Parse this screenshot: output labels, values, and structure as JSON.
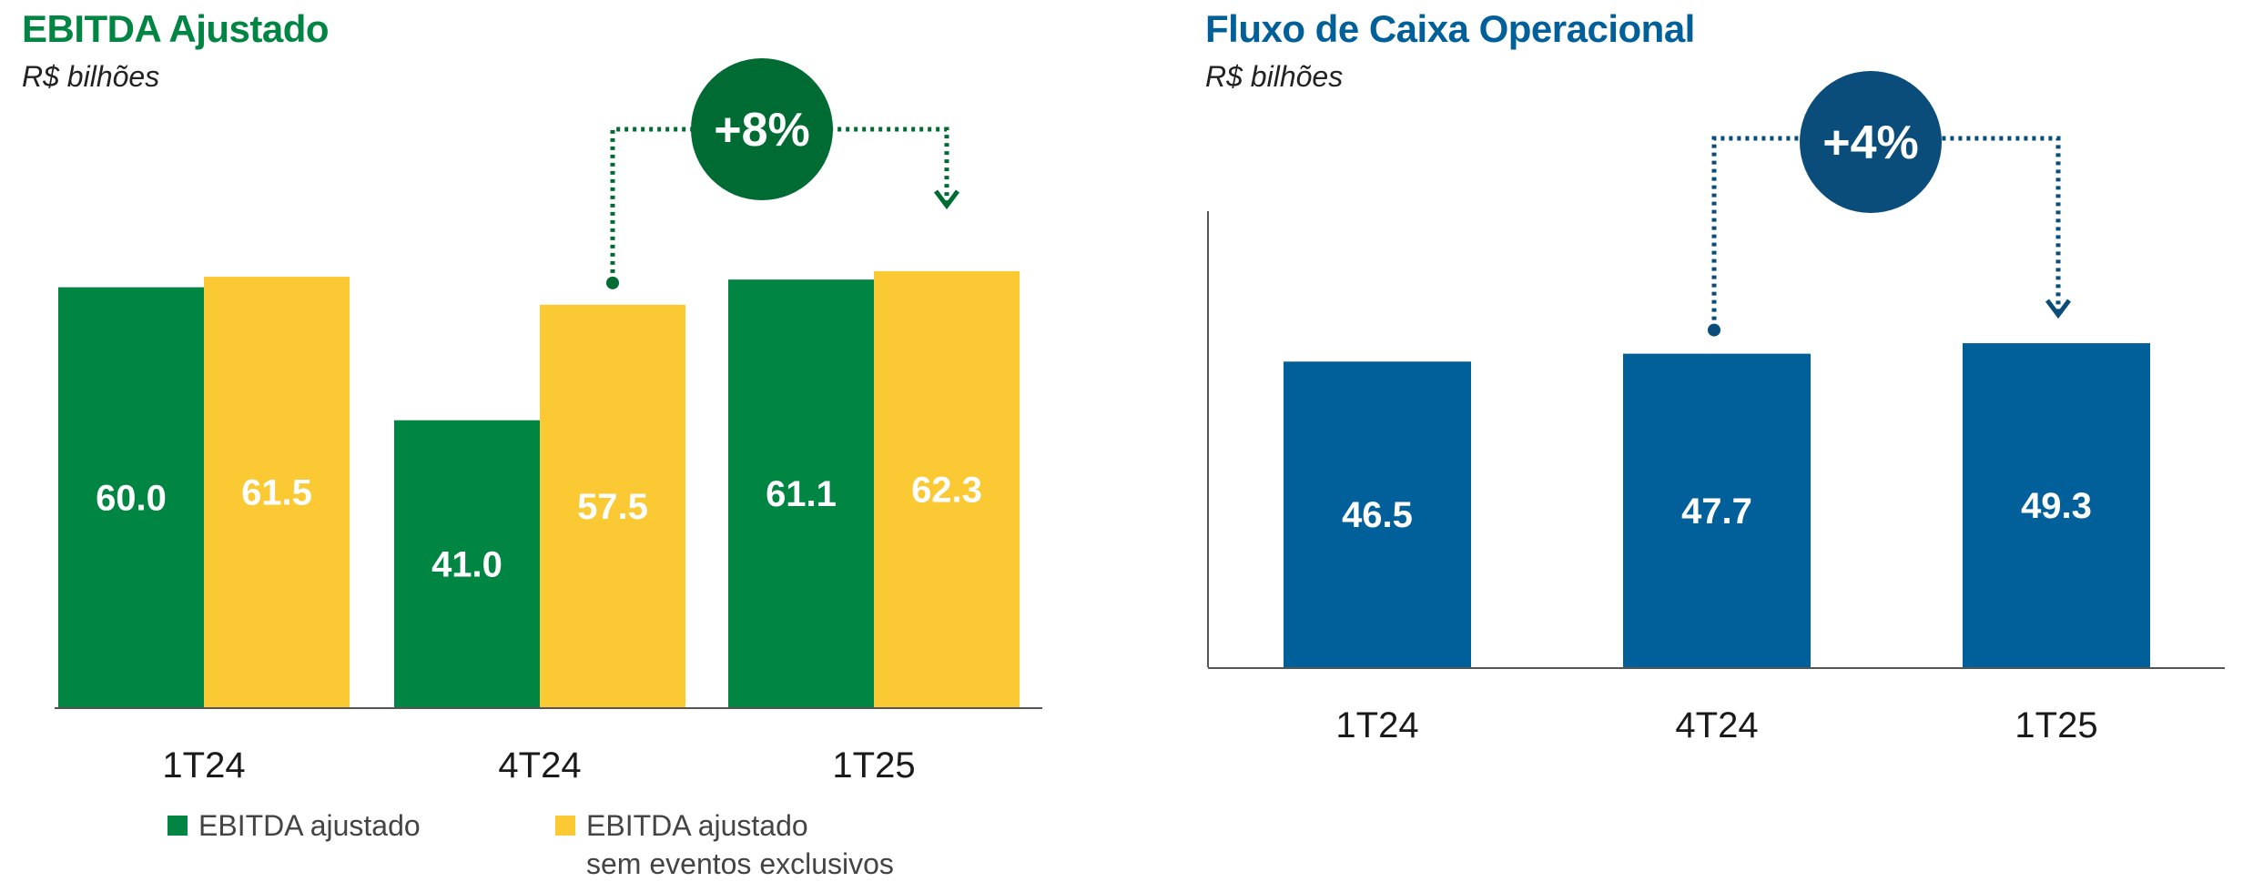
{
  "colors": {
    "ebitda_green": "#008542",
    "ebitda_yellow": "#FBC933",
    "badge_green": "#006B33",
    "fco_blue": "#01609A",
    "badge_blue": "#0A4C7A",
    "axis": "#555555"
  },
  "chart_data": [
    {
      "type": "bar",
      "title": "EBITDA Ajustado",
      "subtitle": "R$ bilhões",
      "categories": [
        "1T24",
        "4T24",
        "1T25"
      ],
      "series": [
        {
          "name": "EBITDA ajustado",
          "color": "#008542",
          "values": [
            60.0,
            41.0,
            61.1
          ],
          "labels": [
            "60.0",
            "41.0",
            "61.1"
          ]
        },
        {
          "name": "EBITDA ajustado sem eventos exclusivos",
          "name_line1": "EBITDA ajustado",
          "name_line2": "sem eventos exclusivos",
          "color": "#FBC933",
          "values": [
            61.5,
            57.5,
            62.3
          ],
          "labels": [
            "61.5",
            "57.5",
            "62.3"
          ]
        }
      ],
      "annotation": {
        "text": "+8%",
        "from": "4T24",
        "to": "1T25"
      },
      "legend": "bottom",
      "grid": false
    },
    {
      "type": "bar",
      "title": "Fluxo de Caixa Operacional",
      "subtitle": "R$ bilhões",
      "categories": [
        "1T24",
        "4T24",
        "1T25"
      ],
      "series": [
        {
          "color": "#01609A",
          "values": [
            46.5,
            47.7,
            49.3
          ],
          "labels": [
            "46.5",
            "47.7",
            "49.3"
          ]
        }
      ],
      "annotation": {
        "text": "+4%",
        "from": "4T24",
        "to": "1T25"
      },
      "grid": false
    }
  ]
}
